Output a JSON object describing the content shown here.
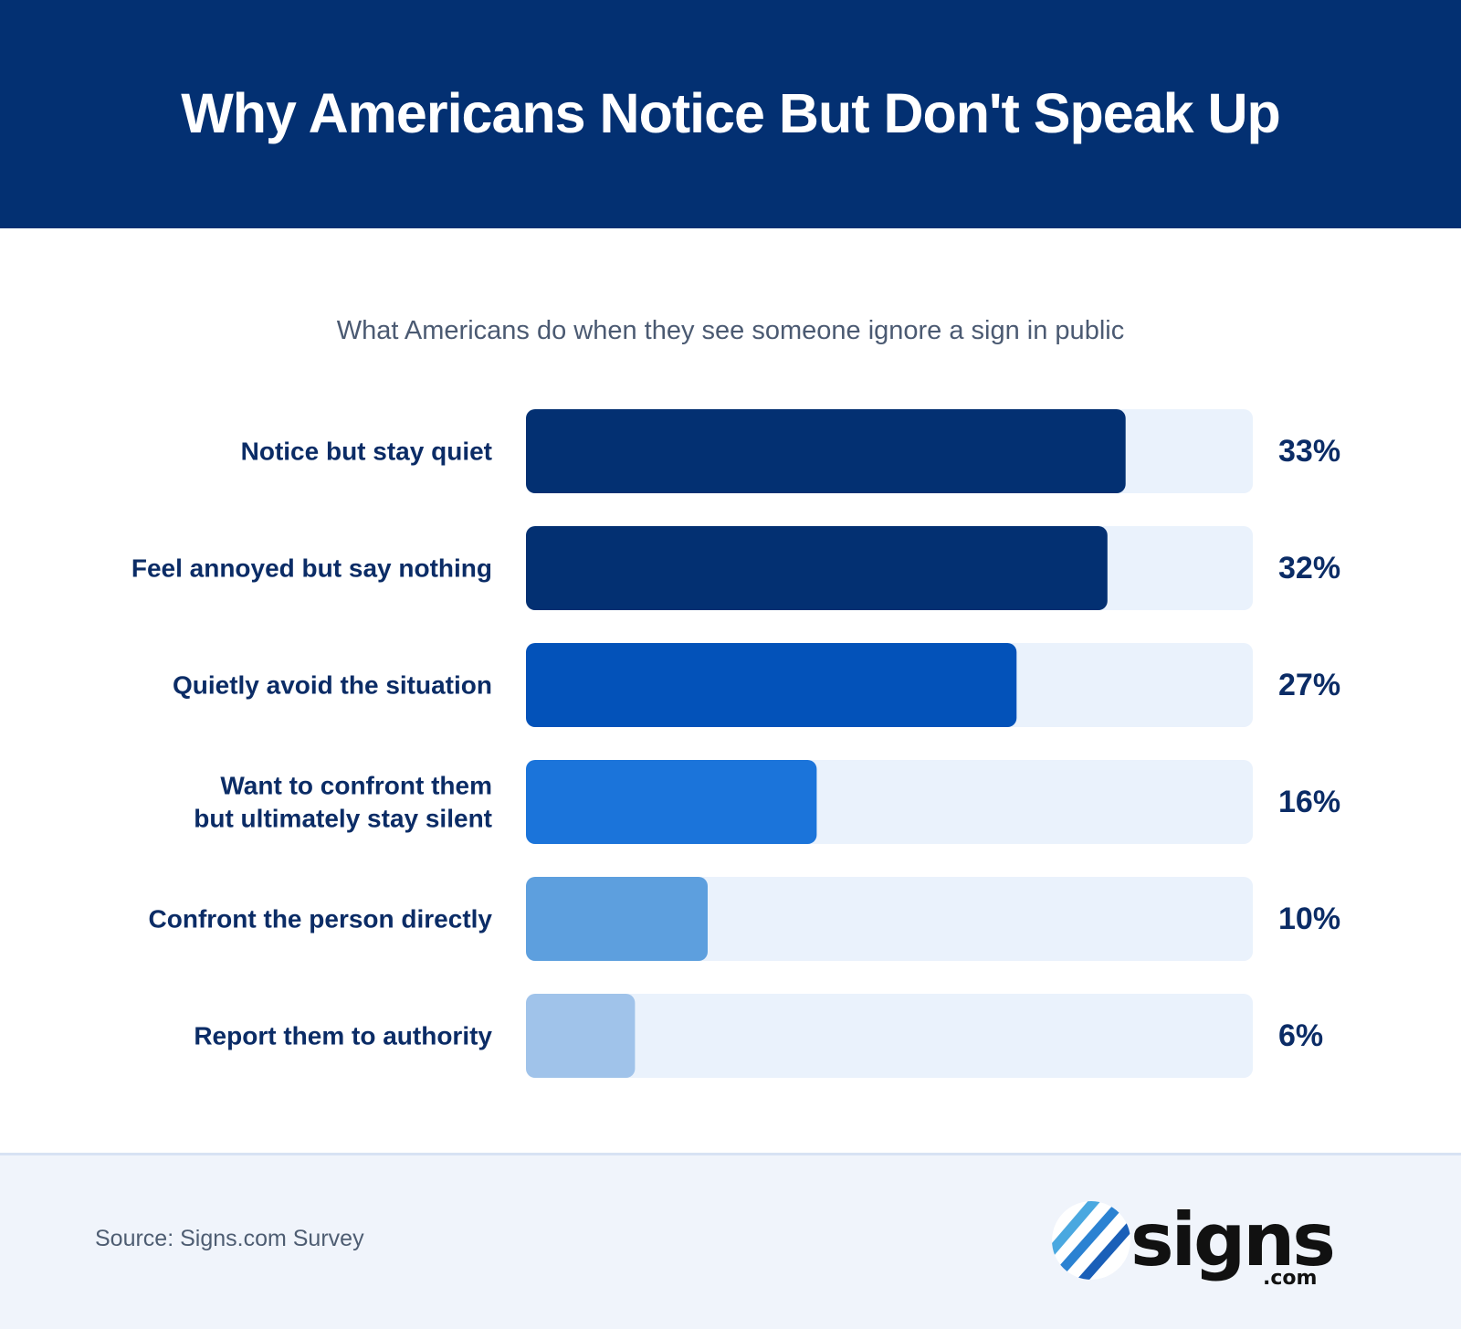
{
  "header": {
    "title": "Why Americans Notice But Don't Speak Up"
  },
  "chart_data": {
    "type": "bar",
    "orientation": "horizontal",
    "title": "Why Americans Notice But Don't Speak Up",
    "subtitle": "What Americans do when they see someone ignore a sign in public",
    "categories": [
      "Notice but stay quiet",
      "Feel annoyed but say nothing",
      "Quietly avoid the situation",
      "Want to confront them but ultimately stay silent",
      "Confront the person directly",
      "Report them to authority"
    ],
    "category_lines": [
      [
        "Notice but stay quiet"
      ],
      [
        "Feel annoyed but say nothing"
      ],
      [
        "Quietly avoid the situation"
      ],
      [
        "Want to confront them",
        "but ultimately stay silent"
      ],
      [
        "Confront the person directly"
      ],
      [
        "Report them to authority"
      ]
    ],
    "values": [
      33,
      32,
      27,
      16,
      10,
      6
    ],
    "value_labels": [
      "33%",
      "32%",
      "27%",
      "16%",
      "10%",
      "6%"
    ],
    "unit": "%",
    "xlim": [
      0,
      40
    ],
    "bar_colors": [
      "#033072",
      "#033072",
      "#0352b9",
      "#1b74da",
      "#5d9fde",
      "#a0c3ea"
    ],
    "track_color": "#eaf2fc",
    "label_color": "#0b2c66",
    "grid": false,
    "legend": "none"
  },
  "footer": {
    "source": "Source: Signs.com Survey",
    "logo_text": "signs",
    "logo_suffix": ".com"
  },
  "colors": {
    "header_bg": "#033072",
    "footer_bg": "#f0f4fb"
  }
}
